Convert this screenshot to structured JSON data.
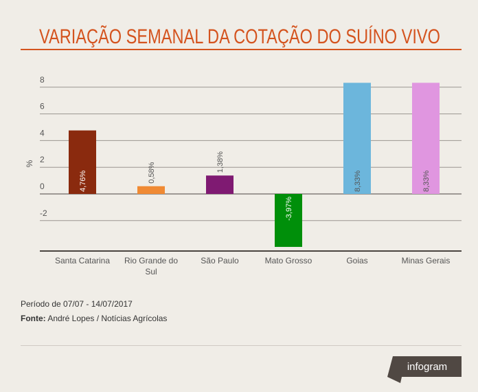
{
  "chart_data": {
    "type": "bar",
    "title": "VARIAÇÃO SEMANAL DA COTAÇÃO DO SUÍNO VIVO",
    "ylabel": "%",
    "xlabel": "",
    "ylim": [
      -4.3,
      8.3
    ],
    "yticks": [
      {
        "value": 8,
        "label": "8"
      },
      {
        "value": 6,
        "label": "6"
      },
      {
        "value": 4,
        "label": "4"
      },
      {
        "value": 2,
        "label": "2"
      },
      {
        "value": 0,
        "label": "0"
      },
      {
        "value": -2,
        "label": "-2"
      }
    ],
    "grid": true,
    "categories": [
      {
        "line1": "Santa Catarina",
        "line2": ""
      },
      {
        "line1": "Rio Grande do",
        "line2": "Sul"
      },
      {
        "line1": "São Paulo",
        "line2": ""
      },
      {
        "line1": "Mato Grosso",
        "line2": ""
      },
      {
        "line1": "Goias",
        "line2": ""
      },
      {
        "line1": "Minas Gerais",
        "line2": ""
      }
    ],
    "values": [
      4.76,
      0.58,
      1.38,
      -3.97,
      8.33,
      8.33
    ],
    "data_labels": [
      "4,76%",
      "0,58%",
      "1,38%",
      "-3,97%",
      "8,33%",
      "8,33%"
    ],
    "colors": [
      "#8a2a0e",
      "#f08a34",
      "#7f1a72",
      "#008f0a",
      "#6cb6dc",
      "#e096e0"
    ],
    "label_colors": [
      "#ffffff",
      "#555555",
      "#555555",
      "#ffffff",
      "#555555",
      "#555555"
    ]
  },
  "footer": {
    "period": "Período de 07/07 - 14/07/2017",
    "source_label": "Fonte:",
    "source_value": " André Lopes / Notícias Agrícolas",
    "brand": "infogram"
  },
  "theme": {
    "accent": "#d4531e",
    "background": "#f0ede7"
  }
}
